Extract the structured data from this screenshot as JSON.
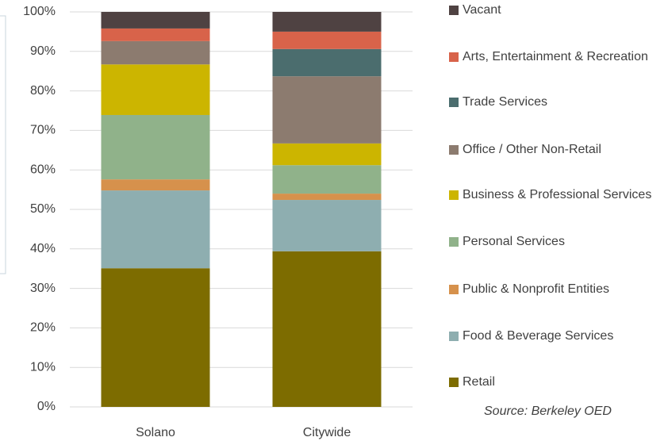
{
  "chart_data": {
    "type": "stacked_bar",
    "categories": [
      "Solano",
      "Citywide"
    ],
    "series": [
      {
        "name": "Retail",
        "color": "#7d6c00",
        "values": [
          35.1,
          39.4
        ]
      },
      {
        "name": "Food & Beverage Services",
        "color": "#8eaeb0",
        "values": [
          19.7,
          13.0
        ]
      },
      {
        "name": "Public & Nonprofit Entities",
        "color": "#d6914c",
        "values": [
          2.8,
          1.6
        ]
      },
      {
        "name": "Personal Services",
        "color": "#90b28a",
        "values": [
          16.3,
          7.2
        ]
      },
      {
        "name": "Business & Professional Services",
        "color": "#ccb500",
        "values": [
          12.8,
          5.5
        ]
      },
      {
        "name": "Office / Other Non-Retail",
        "color": "#8c7b6f",
        "values": [
          5.9,
          17.0
        ]
      },
      {
        "name": "Trade Services",
        "color": "#4b6d6e",
        "values": [
          0,
          6.9
        ]
      },
      {
        "name": "Arts, Entertainment & Recreation",
        "color": "#d8634a",
        "values": [
          3.2,
          4.4
        ]
      },
      {
        "name": "Vacant",
        "color": "#4f4242",
        "values": [
          4.2,
          5.0
        ]
      }
    ],
    "ylim": [
      0,
      100
    ],
    "yticks": [
      {
        "value": 0,
        "label": "0%"
      },
      {
        "value": 10,
        "label": "10%"
      },
      {
        "value": 20,
        "label": "20%"
      },
      {
        "value": 30,
        "label": "30%"
      },
      {
        "value": 40,
        "label": "40%"
      },
      {
        "value": 50,
        "label": "50%"
      },
      {
        "value": 60,
        "label": "60%"
      },
      {
        "value": 70,
        "label": "70%"
      },
      {
        "value": 80,
        "label": "80%"
      },
      {
        "value": 90,
        "label": "90%"
      },
      {
        "value": 100,
        "label": "100%"
      }
    ],
    "grid": true,
    "legend": "right",
    "annotation": "Source: Berkeley OED"
  }
}
